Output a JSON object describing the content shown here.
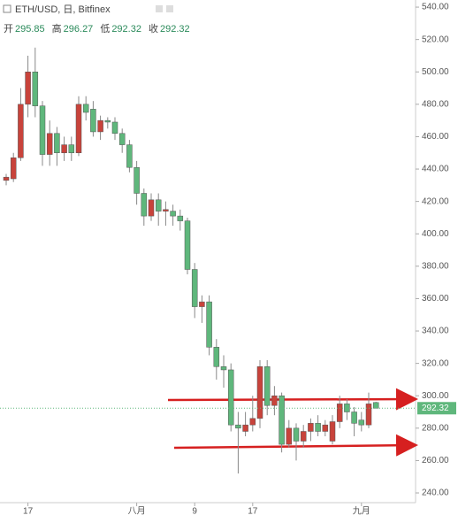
{
  "chart_data": {
    "type": "candlestick",
    "title": "ETH/USD, 日, Bitfinex",
    "ohlc_header": [
      {
        "label": "开",
        "value": 295.85
      },
      {
        "label": "高",
        "value": 296.27
      },
      {
        "label": "低",
        "value": 292.32
      },
      {
        "label": "收",
        "value": 292.32
      }
    ],
    "categories": [
      null,
      null,
      null,
      "17",
      null,
      null,
      null,
      null,
      null,
      null,
      null,
      null,
      null,
      null,
      null,
      null,
      null,
      null,
      "八月",
      null,
      null,
      null,
      null,
      null,
      null,
      null,
      "9",
      null,
      null,
      null,
      null,
      null,
      null,
      null,
      "17",
      null,
      null,
      null,
      null,
      null,
      null,
      null,
      null,
      null,
      null,
      null,
      null,
      null,
      null,
      "九月",
      null,
      null
    ],
    "open": [
      433,
      434,
      447,
      480,
      500,
      479,
      449,
      462,
      450,
      455,
      450,
      480,
      477,
      463,
      470,
      469,
      462,
      455,
      441,
      425,
      411,
      421,
      414,
      414,
      411,
      408,
      378,
      355,
      358,
      330,
      318,
      316,
      282,
      278,
      282,
      286,
      318,
      294,
      300,
      270,
      280,
      272,
      278,
      283,
      278,
      272,
      284,
      295,
      290,
      285,
      282,
      295.85
    ],
    "high": [
      437,
      450,
      490,
      510,
      515,
      482,
      470,
      466,
      460,
      460,
      485,
      485,
      482,
      473,
      472,
      472,
      465,
      458,
      445,
      428,
      425,
      425,
      420,
      418,
      415,
      410,
      382,
      362,
      362,
      335,
      325,
      320,
      290,
      290,
      300,
      322,
      322,
      306,
      302,
      285,
      283,
      282,
      286,
      288,
      285,
      288,
      300,
      298,
      293,
      290,
      302,
      296.27
    ],
    "low": [
      430,
      432,
      445,
      472,
      472,
      442,
      442,
      442,
      445,
      445,
      448,
      470,
      460,
      458,
      465,
      458,
      450,
      438,
      418,
      405,
      408,
      405,
      405,
      405,
      402,
      375,
      348,
      345,
      325,
      310,
      305,
      278,
      252,
      275,
      278,
      280,
      288,
      288,
      265,
      268,
      260,
      268,
      272,
      275,
      275,
      270,
      280,
      285,
      275,
      278,
      280,
      292.32
    ],
    "close": [
      435,
      447,
      480,
      500,
      479,
      449,
      462,
      450,
      455,
      450,
      480,
      475,
      463,
      470,
      469,
      462,
      455,
      441,
      425,
      411,
      421,
      414,
      415,
      411,
      408,
      378,
      355,
      358,
      330,
      318,
      316,
      282,
      280,
      282,
      286,
      318,
      294,
      300,
      270,
      280,
      272,
      278,
      283,
      278,
      282,
      284,
      295,
      290,
      283,
      282,
      295,
      292.32
    ],
    "up_color": "#c8433b",
    "down_color": "#5fb77c",
    "last_price": 292.32,
    "ylim": [
      234,
      544.4
    ],
    "yticks": [
      {
        "value": 240,
        "label": "240.00"
      },
      {
        "value": 260,
        "label": "260.00"
      },
      {
        "value": 280,
        "label": "280.00"
      },
      {
        "value": 300,
        "label": "300.00"
      },
      {
        "value": 320,
        "label": "320.00"
      },
      {
        "value": 340,
        "label": "340.00"
      },
      {
        "value": 360,
        "label": "360.00"
      },
      {
        "value": 380,
        "label": "380.00"
      },
      {
        "value": 400,
        "label": "400.00"
      },
      {
        "value": 420,
        "label": "420.00"
      },
      {
        "value": 440,
        "label": "440.00"
      },
      {
        "value": 460,
        "label": "460.00"
      },
      {
        "value": 480,
        "label": "480.00"
      },
      {
        "value": 500,
        "label": "500.00"
      },
      {
        "value": 520,
        "label": "520.00"
      },
      {
        "value": 540,
        "label": "540.00"
      }
    ]
  }
}
